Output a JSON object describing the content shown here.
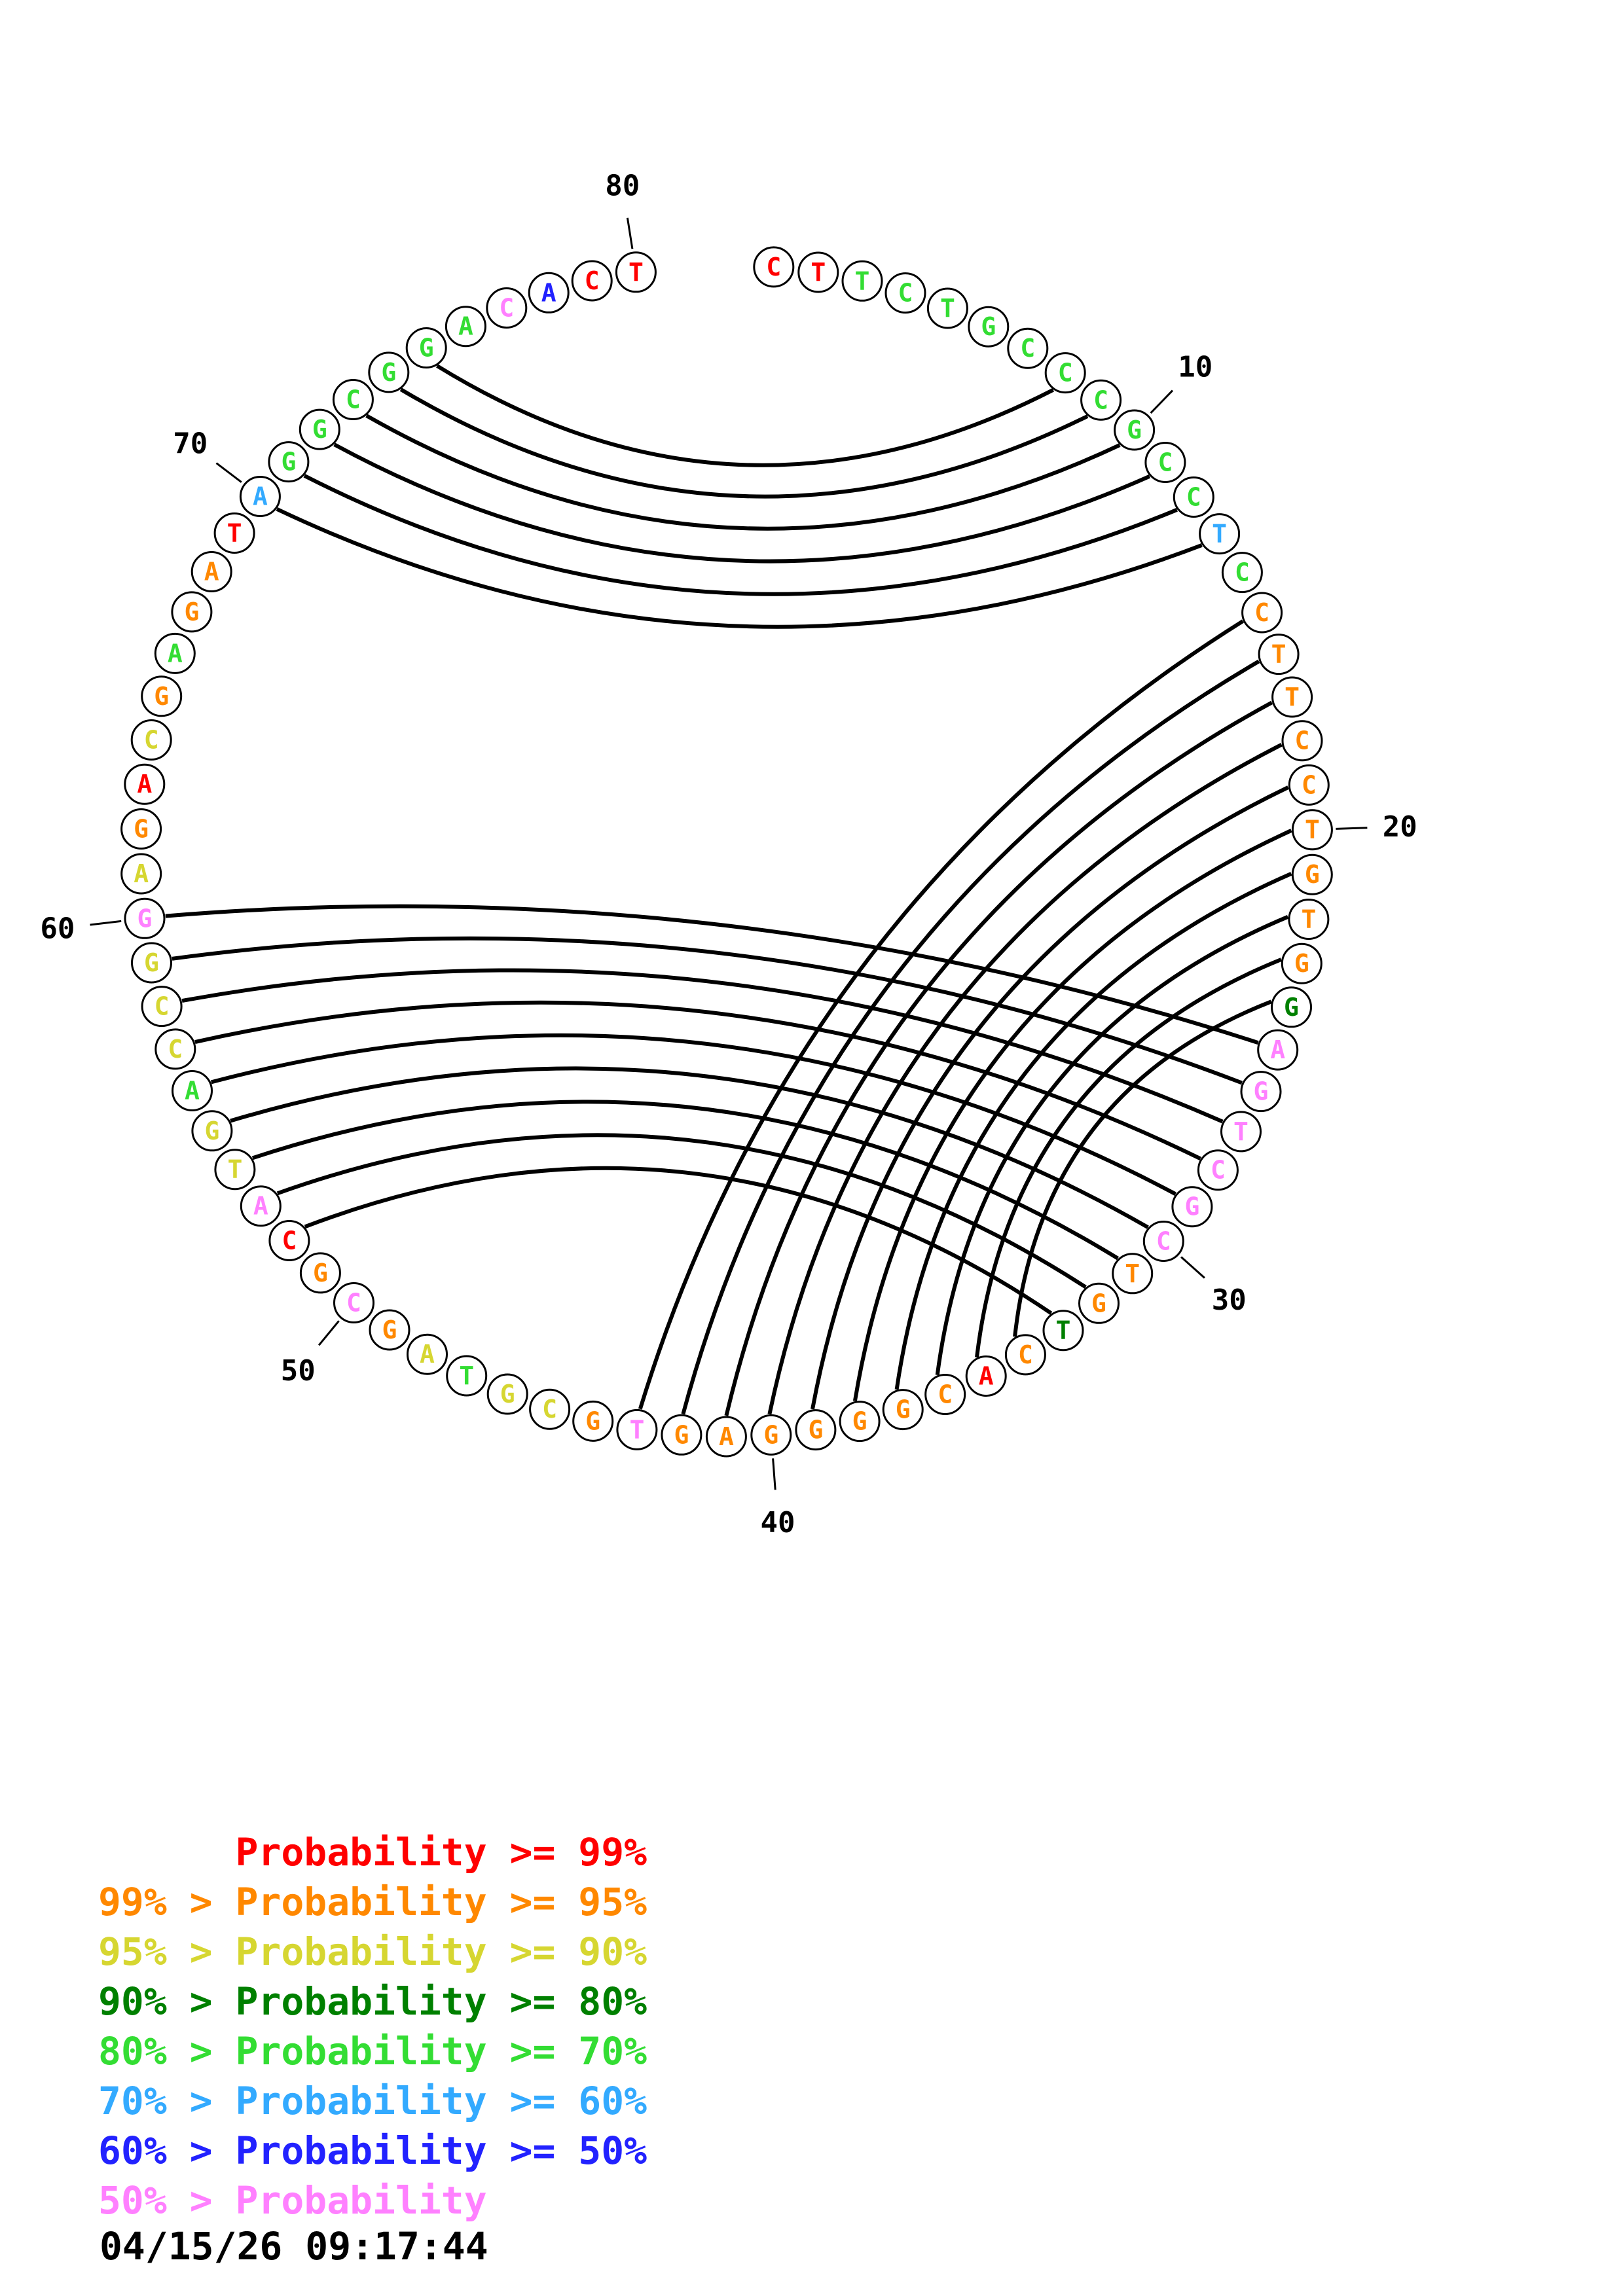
{
  "plot": {
    "sequence": [
      {
        "p": 1,
        "b": "C",
        "l": "p99"
      },
      {
        "p": 2,
        "b": "T",
        "l": "p99"
      },
      {
        "p": 3,
        "b": "T",
        "l": "p70"
      },
      {
        "p": 4,
        "b": "C",
        "l": "p70"
      },
      {
        "p": 5,
        "b": "T",
        "l": "p70"
      },
      {
        "p": 6,
        "b": "G",
        "l": "p70"
      },
      {
        "p": 7,
        "b": "C",
        "l": "p70"
      },
      {
        "p": 8,
        "b": "C",
        "l": "p70"
      },
      {
        "p": 9,
        "b": "C",
        "l": "p70"
      },
      {
        "p": 10,
        "b": "G",
        "l": "p70"
      },
      {
        "p": 11,
        "b": "C",
        "l": "p70"
      },
      {
        "p": 12,
        "b": "C",
        "l": "p70"
      },
      {
        "p": 13,
        "b": "T",
        "l": "p60"
      },
      {
        "p": 14,
        "b": "C",
        "l": "p70"
      },
      {
        "p": 15,
        "b": "C",
        "l": "p95"
      },
      {
        "p": 16,
        "b": "T",
        "l": "p95"
      },
      {
        "p": 17,
        "b": "T",
        "l": "p95"
      },
      {
        "p": 18,
        "b": "C",
        "l": "p95"
      },
      {
        "p": 19,
        "b": "C",
        "l": "p95"
      },
      {
        "p": 20,
        "b": "T",
        "l": "p95"
      },
      {
        "p": 21,
        "b": "G",
        "l": "p95"
      },
      {
        "p": 22,
        "b": "T",
        "l": "p95"
      },
      {
        "p": 23,
        "b": "G",
        "l": "p95"
      },
      {
        "p": 24,
        "b": "G",
        "l": "p80"
      },
      {
        "p": 25,
        "b": "A",
        "l": "plt50"
      },
      {
        "p": 26,
        "b": "G",
        "l": "plt50"
      },
      {
        "p": 27,
        "b": "T",
        "l": "plt50"
      },
      {
        "p": 28,
        "b": "C",
        "l": "plt50"
      },
      {
        "p": 29,
        "b": "G",
        "l": "plt50"
      },
      {
        "p": 30,
        "b": "C",
        "l": "plt50"
      },
      {
        "p": 31,
        "b": "T",
        "l": "p95"
      },
      {
        "p": 32,
        "b": "G",
        "l": "p95"
      },
      {
        "p": 33,
        "b": "T",
        "l": "p80"
      },
      {
        "p": 34,
        "b": "C",
        "l": "p95"
      },
      {
        "p": 35,
        "b": "A",
        "l": "p99"
      },
      {
        "p": 36,
        "b": "C",
        "l": "p95"
      },
      {
        "p": 37,
        "b": "G",
        "l": "p95"
      },
      {
        "p": 38,
        "b": "G",
        "l": "p95"
      },
      {
        "p": 39,
        "b": "G",
        "l": "p95"
      },
      {
        "p": 40,
        "b": "G",
        "l": "p95"
      },
      {
        "p": 41,
        "b": "A",
        "l": "p95"
      },
      {
        "p": 42,
        "b": "G",
        "l": "p95"
      },
      {
        "p": 43,
        "b": "T",
        "l": "plt50"
      },
      {
        "p": 44,
        "b": "G",
        "l": "p95"
      },
      {
        "p": 45,
        "b": "C",
        "l": "p90"
      },
      {
        "p": 46,
        "b": "G",
        "l": "p90"
      },
      {
        "p": 47,
        "b": "T",
        "l": "p70"
      },
      {
        "p": 48,
        "b": "A",
        "l": "p90"
      },
      {
        "p": 49,
        "b": "G",
        "l": "p95"
      },
      {
        "p": 50,
        "b": "C",
        "l": "plt50"
      },
      {
        "p": 51,
        "b": "G",
        "l": "p95"
      },
      {
        "p": 52,
        "b": "C",
        "l": "p99"
      },
      {
        "p": 53,
        "b": "A",
        "l": "plt50"
      },
      {
        "p": 54,
        "b": "T",
        "l": "p90"
      },
      {
        "p": 55,
        "b": "G",
        "l": "p90"
      },
      {
        "p": 56,
        "b": "A",
        "l": "p70"
      },
      {
        "p": 57,
        "b": "C",
        "l": "p90"
      },
      {
        "p": 58,
        "b": "C",
        "l": "p90"
      },
      {
        "p": 59,
        "b": "G",
        "l": "p90"
      },
      {
        "p": 60,
        "b": "G",
        "l": "plt50"
      },
      {
        "p": 61,
        "b": "A",
        "l": "p90"
      },
      {
        "p": 62,
        "b": "G",
        "l": "p95"
      },
      {
        "p": 63,
        "b": "A",
        "l": "p99"
      },
      {
        "p": 64,
        "b": "C",
        "l": "p90"
      },
      {
        "p": 65,
        "b": "G",
        "l": "p95"
      },
      {
        "p": 66,
        "b": "A",
        "l": "p70"
      },
      {
        "p": 67,
        "b": "G",
        "l": "p95"
      },
      {
        "p": 68,
        "b": "A",
        "l": "p95"
      },
      {
        "p": 69,
        "b": "T",
        "l": "p99"
      },
      {
        "p": 70,
        "b": "A",
        "l": "p60"
      },
      {
        "p": 71,
        "b": "G",
        "l": "p70"
      },
      {
        "p": 72,
        "b": "G",
        "l": "p70"
      },
      {
        "p": 73,
        "b": "C",
        "l": "p70"
      },
      {
        "p": 74,
        "b": "G",
        "l": "p70"
      },
      {
        "p": 75,
        "b": "G",
        "l": "p70"
      },
      {
        "p": 76,
        "b": "A",
        "l": "p70"
      },
      {
        "p": 77,
        "b": "C",
        "l": "plt50"
      },
      {
        "p": 78,
        "b": "A",
        "l": "p50"
      },
      {
        "p": 79,
        "b": "C",
        "l": "p99"
      },
      {
        "p": 80,
        "b": "T",
        "l": "p99"
      }
    ],
    "pairs": [
      [
        8,
        75
      ],
      [
        9,
        74
      ],
      [
        10,
        73
      ],
      [
        11,
        72
      ],
      [
        12,
        71
      ],
      [
        13,
        70
      ],
      [
        15,
        43
      ],
      [
        16,
        42
      ],
      [
        17,
        41
      ],
      [
        18,
        40
      ],
      [
        19,
        39
      ],
      [
        20,
        38
      ],
      [
        21,
        37
      ],
      [
        22,
        36
      ],
      [
        23,
        35
      ],
      [
        24,
        34
      ],
      [
        52,
        33
      ],
      [
        53,
        32
      ],
      [
        54,
        31
      ],
      [
        55,
        30
      ],
      [
        56,
        29
      ],
      [
        57,
        28
      ],
      [
        58,
        27
      ],
      [
        59,
        26
      ],
      [
        60,
        25
      ]
    ],
    "tick_labels": [
      {
        "pos": 10,
        "text": "10"
      },
      {
        "pos": 20,
        "text": "20"
      },
      {
        "pos": 30,
        "text": "30"
      },
      {
        "pos": 40,
        "text": "40"
      },
      {
        "pos": 50,
        "text": "50"
      },
      {
        "pos": 60,
        "text": "60"
      },
      {
        "pos": 70,
        "text": "70"
      },
      {
        "pos": 80,
        "text": "80"
      }
    ]
  },
  "legend": {
    "lines": [
      {
        "text": "      Probability >= 99%",
        "level": "p99"
      },
      {
        "text": "99% > Probability >= 95%",
        "level": "p95"
      },
      {
        "text": "95% > Probability >= 90%",
        "level": "p90"
      },
      {
        "text": "90% > Probability >= 80%",
        "level": "p80"
      },
      {
        "text": "80% > Probability >= 70%",
        "level": "p70"
      },
      {
        "text": "70% > Probability >= 60%",
        "level": "p60"
      },
      {
        "text": "60% > Probability >= 50%",
        "level": "p50"
      },
      {
        "text": "50% > Probability",
        "level": "plt50"
      }
    ]
  },
  "timestamp": "04/15/26 09:17:44",
  "colors": {
    "p99": "#ff0000",
    "p95": "#ff8800",
    "p90": "#d6d631",
    "p80": "#008000",
    "p70": "#33dd33",
    "p60": "#33aaff",
    "p50": "#2222ff",
    "plt50": "#ff80ff",
    "arc": "#000000",
    "ring": "#000000",
    "label": "#000000"
  }
}
